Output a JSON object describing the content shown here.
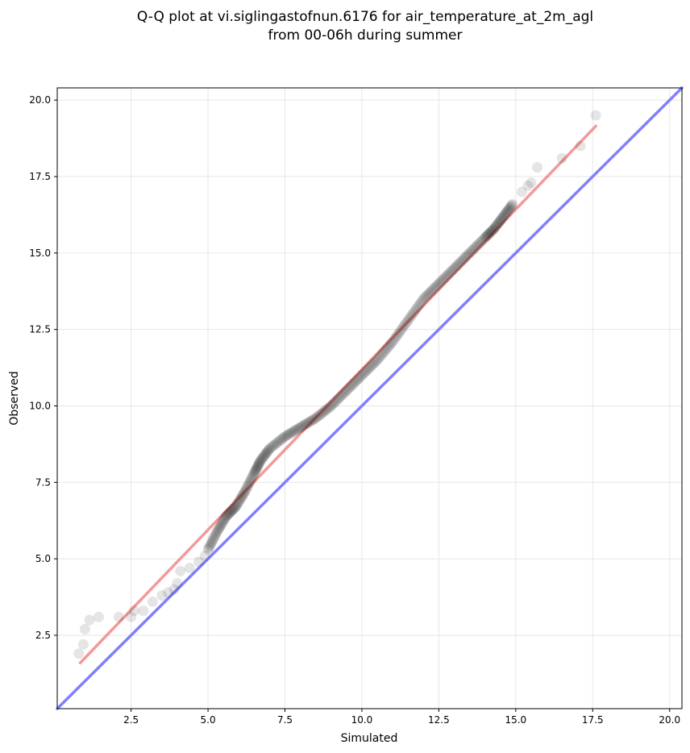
{
  "chart_data": {
    "type": "scatter",
    "title_lines": [
      "Q-Q plot at vi.siglingastofnun.6176 for air_temperature_at_2m_agl",
      "from 00-06h during summer"
    ],
    "xlabel": "Simulated",
    "ylabel": "Observed",
    "xlim": [
      0.1,
      20.4
    ],
    "ylim": [
      0.1,
      20.4
    ],
    "xticks": [
      "2.5",
      "5.0",
      "7.5",
      "10.0",
      "12.5",
      "15.0",
      "17.5",
      "20.0"
    ],
    "yticks": [
      "2.5",
      "5.0",
      "7.5",
      "10.0",
      "12.5",
      "15.0",
      "17.5",
      "20.0"
    ],
    "grid": true,
    "colors": {
      "points": "#000000",
      "fit_line": "#f08080",
      "identity_line": "#8080ff",
      "grid": "#e6e6e6"
    },
    "fit_line": {
      "x": [
        0.85,
        17.6
      ],
      "y": [
        1.6,
        19.15
      ]
    },
    "identity_line": {
      "x": [
        0.1,
        20.4
      ],
      "y": [
        0.1,
        20.4
      ]
    },
    "points": {
      "x": [
        0.8,
        0.95,
        1.0,
        1.15,
        1.45,
        2.1,
        2.5,
        2.6,
        2.9,
        3.2,
        3.5,
        3.7,
        3.9,
        4.0,
        4.1,
        4.4,
        4.7,
        4.9,
        5.0,
        5.3,
        5.6,
        5.9,
        6.2,
        6.5,
        6.7,
        7.0,
        7.5,
        8.0,
        8.5,
        9.0,
        9.5,
        10.0,
        10.5,
        11.0,
        11.5,
        12.0,
        12.5,
        13.0,
        13.5,
        14.0,
        14.3,
        14.6,
        14.9,
        15.2,
        15.4,
        15.5,
        15.7,
        16.5,
        17.1,
        17.6
      ],
      "y": [
        1.9,
        2.2,
        2.7,
        3.0,
        3.1,
        3.1,
        3.1,
        3.3,
        3.3,
        3.6,
        3.8,
        3.9,
        4.0,
        4.2,
        4.6,
        4.7,
        4.9,
        5.1,
        5.3,
        5.9,
        6.4,
        6.7,
        7.2,
        7.8,
        8.2,
        8.6,
        9.0,
        9.3,
        9.6,
        10.0,
        10.5,
        11.0,
        11.5,
        12.1,
        12.8,
        13.5,
        14.0,
        14.5,
        15.0,
        15.5,
        15.8,
        16.2,
        16.6,
        17.0,
        17.2,
        17.3,
        17.8,
        18.1,
        18.5,
        19.5
      ]
    }
  }
}
